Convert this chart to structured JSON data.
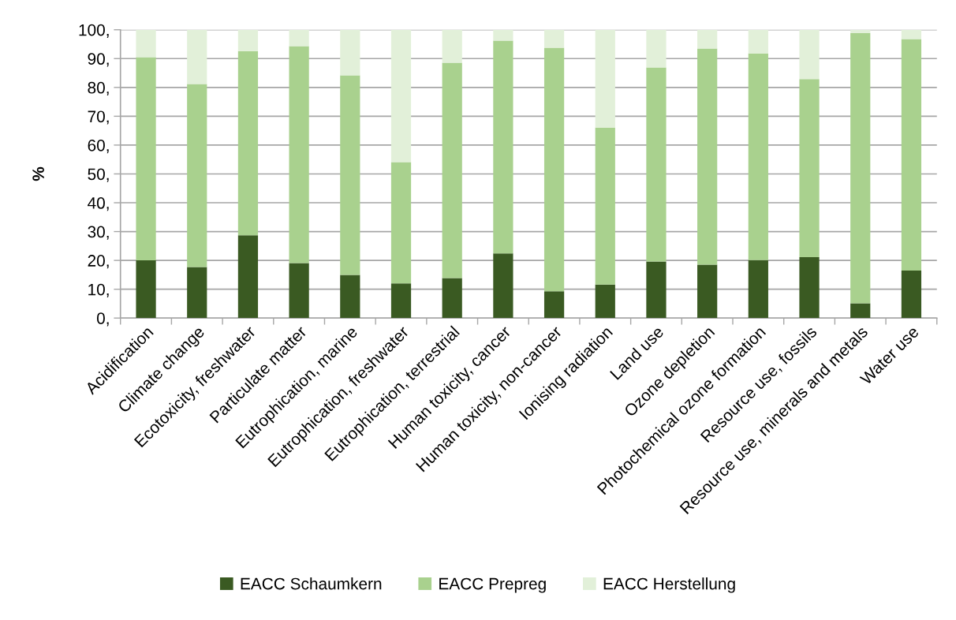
{
  "chart_data": {
    "type": "bar",
    "stacked": true,
    "ylabel": "%",
    "categories": [
      "Acidification",
      "Climate change",
      "Ecotoxicity, freshwater",
      "Particulate matter",
      "Eutrophication, marine",
      "Eutrophication, freshwater",
      "Eutrophication, terrestrial",
      "Human toxicity, cancer",
      "Human toxicity, non-cancer",
      "Ionising radiation",
      "Land use",
      "Ozone depletion",
      "Photochemical ozone formation",
      "Resource use, fossils",
      "Resource use, minerals and metals",
      "Water use"
    ],
    "series": [
      {
        "name": "EACC Schaumkern",
        "color": "#3a5a22",
        "values": [
          20.0,
          17.7,
          28.7,
          19.1,
          15.0,
          12.0,
          13.9,
          22.4,
          9.3,
          11.6,
          19.6,
          18.5,
          20.1,
          21.1,
          5.1,
          16.5
        ]
      },
      {
        "name": "EACC Prepreg",
        "color": "#a9d18e",
        "values": [
          70.5,
          63.5,
          63.9,
          75.2,
          69.2,
          42.1,
          74.7,
          73.8,
          84.5,
          54.5,
          67.3,
          75.0,
          71.7,
          61.8,
          93.7,
          80.3
        ]
      },
      {
        "name": "EACC Herstellung",
        "color": "#e2f0d9",
        "values": [
          9.5,
          18.8,
          7.4,
          5.7,
          15.8,
          45.9,
          11.4,
          3.8,
          6.2,
          33.9,
          13.1,
          6.5,
          8.2,
          17.1,
          1.2,
          3.2
        ]
      }
    ],
    "ylim": [
      0,
      100
    ],
    "yticks": [
      {
        "value": 0,
        "label": "0,"
      },
      {
        "value": 10,
        "label": "10,"
      },
      {
        "value": 20,
        "label": "20,"
      },
      {
        "value": 30,
        "label": "30,"
      },
      {
        "value": 40,
        "label": "40,"
      },
      {
        "value": 50,
        "label": "50,"
      },
      {
        "value": 60,
        "label": "60,"
      },
      {
        "value": 70,
        "label": "70,"
      },
      {
        "value": 80,
        "label": "80,"
      },
      {
        "value": 90,
        "label": "90,"
      },
      {
        "value": 100,
        "label": "100,"
      }
    ],
    "grid": "y",
    "legend": "bottom"
  }
}
